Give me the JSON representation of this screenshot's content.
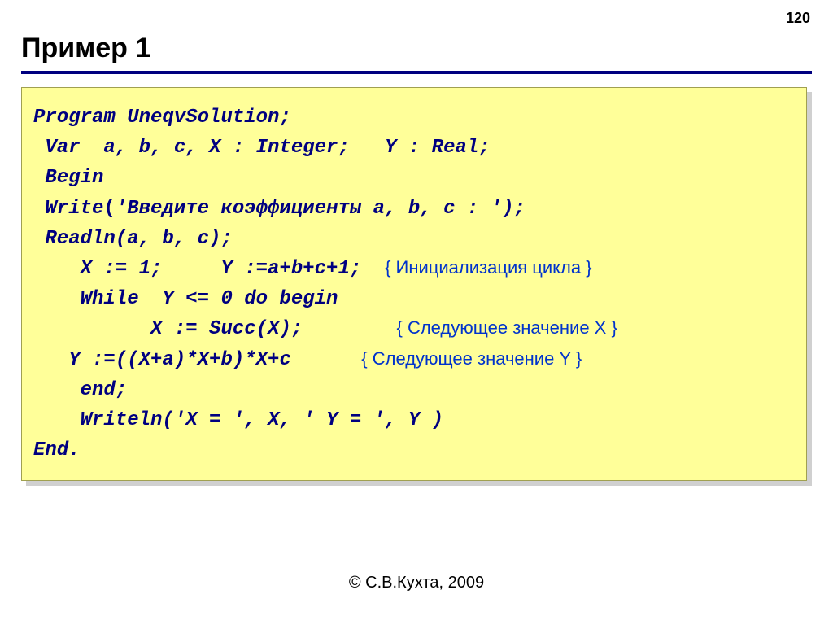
{
  "page_number": "120",
  "title": "Пример 1",
  "code": {
    "l1": "Program UneqvSolution;",
    "l2": " Var  a, b, c, X : Integer;   Y : Real;",
    "l3": " Begin",
    "l4_a": " Write",
    "l4_b": "(",
    "l4_c": "'Введите коэффициенты a, b, c : ');",
    "l5": " Readln(a, b, c);",
    "l6_a": "    X := 1;     Y :=a+b+c+1;  ",
    "l6_c": "{ Инициализация цикла }",
    "l7": "    While  Y <= 0 do begin",
    "l8_a": "          X := Succ(X);        ",
    "l8_c": "{ Следующее значение Х }",
    "l9_a": "   Y :=((X+a)*X+b)*X+c      ",
    "l9_c": "{ Следующее значение Y }",
    "l10": "    end;",
    "l11": "    Writeln('X = ', X, ' Y = ', Y )",
    "l12": "End."
  },
  "footer": "© С.В.Кухта, 2009",
  "colors": {
    "code_text": "#000080",
    "comment_text": "#0033cc",
    "code_bg": "#ffff99",
    "rule": "#000080"
  }
}
